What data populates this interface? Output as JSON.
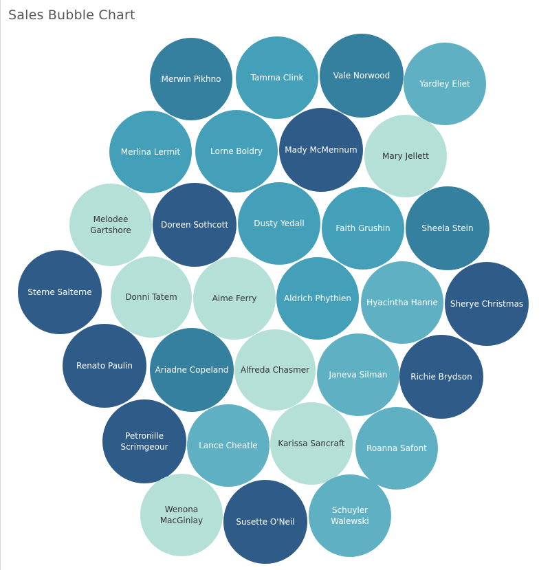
{
  "chart_data": {
    "type": "bubble",
    "title": "Sales Bubble Chart",
    "colors": {
      "dark": "#2e5b87",
      "mid_dark": "#35809e",
      "mid": "#44a0b9",
      "light": "#5fb0c3",
      "pale": "#b4e0d8",
      "text_light": "#ffffff",
      "text_dark": "#333333"
    },
    "bubbles": [
      {
        "name": "Merwin Pikhno",
        "label_lines": [
          "Merwin Pikhno"
        ],
        "shade": "mid_dark"
      },
      {
        "name": "Tamma Clink",
        "label_lines": [
          "Tamma Clink"
        ],
        "shade": "mid"
      },
      {
        "name": "Vale Norwood",
        "label_lines": [
          "Vale Norwood"
        ],
        "shade": "mid_dark"
      },
      {
        "name": "Yardley Eliet",
        "label_lines": [
          "Yardley Eliet"
        ],
        "shade": "light"
      },
      {
        "name": "Merlina Lermit",
        "label_lines": [
          "Merlina Lermit"
        ],
        "shade": "mid"
      },
      {
        "name": "Lorne Boldry",
        "label_lines": [
          "Lorne Boldry"
        ],
        "shade": "mid"
      },
      {
        "name": "Mady McMennum",
        "label_lines": [
          "Mady McMennum"
        ],
        "shade": "dark"
      },
      {
        "name": "Mary Jellett",
        "label_lines": [
          "Mary Jellett"
        ],
        "shade": "pale"
      },
      {
        "name": "Melodee Gartshore",
        "label_lines": [
          "Melodee",
          "Gartshore"
        ],
        "shade": "pale"
      },
      {
        "name": "Doreen Sothcott",
        "label_lines": [
          "Doreen Sothcott"
        ],
        "shade": "dark"
      },
      {
        "name": "Dusty Yedall",
        "label_lines": [
          "Dusty Yedall"
        ],
        "shade": "mid"
      },
      {
        "name": "Faith Grushin",
        "label_lines": [
          "Faith Grushin"
        ],
        "shade": "mid"
      },
      {
        "name": "Sheela Stein",
        "label_lines": [
          "Sheela Stein"
        ],
        "shade": "mid_dark"
      },
      {
        "name": "Sterne Salterne",
        "label_lines": [
          "Sterne Salterne"
        ],
        "shade": "dark"
      },
      {
        "name": "Donni Tatem",
        "label_lines": [
          "Donni Tatem"
        ],
        "shade": "pale"
      },
      {
        "name": "Aime Ferry",
        "label_lines": [
          "Aime Ferry"
        ],
        "shade": "pale"
      },
      {
        "name": "Aldrich Phythien",
        "label_lines": [
          "Aldrich Phythien"
        ],
        "shade": "mid"
      },
      {
        "name": "Hyacintha Hanne",
        "label_lines": [
          "Hyacintha Hanne"
        ],
        "shade": "light"
      },
      {
        "name": "Sherye Christmas",
        "label_lines": [
          "Sherye Christmas"
        ],
        "shade": "dark"
      },
      {
        "name": "Renato Paulin",
        "label_lines": [
          "Renato Paulin"
        ],
        "shade": "dark"
      },
      {
        "name": "Ariadne Copeland",
        "label_lines": [
          "Ariadne Copeland"
        ],
        "shade": "mid_dark"
      },
      {
        "name": "Alfreda Chasmer",
        "label_lines": [
          "Alfreda Chasmer"
        ],
        "shade": "pale"
      },
      {
        "name": "Janeva Silman",
        "label_lines": [
          "Janeva Silman"
        ],
        "shade": "light"
      },
      {
        "name": "Richie Brydson",
        "label_lines": [
          "Richie Brydson"
        ],
        "shade": "dark"
      },
      {
        "name": "Petronille Scrimgeour",
        "label_lines": [
          "Petronille",
          "Scrimgeour"
        ],
        "shade": "dark"
      },
      {
        "name": "Lance Cheatle",
        "label_lines": [
          "Lance Cheatle"
        ],
        "shade": "light"
      },
      {
        "name": "Karissa Sancraft",
        "label_lines": [
          "Karissa Sancraft"
        ],
        "shade": "pale"
      },
      {
        "name": "Roanna Safont",
        "label_lines": [
          "Roanna Safont"
        ],
        "shade": "light"
      },
      {
        "name": "Wenona MacGinlay",
        "label_lines": [
          "Wenona",
          "MacGinlay"
        ],
        "shade": "pale"
      },
      {
        "name": "Susette O'Neil",
        "label_lines": [
          "Susette O'Neil"
        ],
        "shade": "dark"
      },
      {
        "name": "Schuyler Walewski",
        "label_lines": [
          "Schuyler",
          "Walewski"
        ],
        "shade": "light"
      }
    ]
  }
}
